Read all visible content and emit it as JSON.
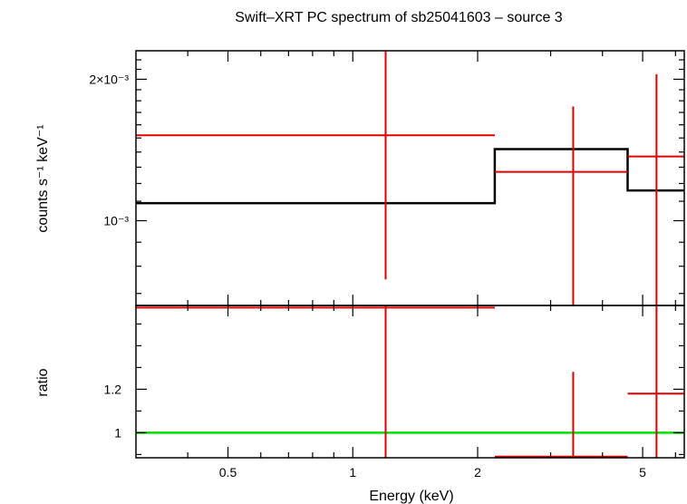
{
  "chart_data": [
    {
      "type": "line",
      "panel": "spectrum",
      "title": "Swift–XRT PC spectrum of sb25041603 – source 3",
      "ylabel": "counts s⁻¹ keV⁻¹",
      "xscale": "log",
      "yscale": "log",
      "xlim": [
        0.3,
        6.3
      ],
      "ylim": [
        0.00066,
        0.0023
      ],
      "yticks_labeled": [
        {
          "value": 0.001,
          "label": "10⁻³"
        },
        {
          "value": 0.002,
          "label": "2×10⁻³"
        }
      ],
      "yticks_minor": [
        0.0007,
        0.0008,
        0.0009,
        0.0011,
        0.0012,
        0.0013,
        0.0014,
        0.0015,
        0.0016,
        0.0017,
        0.0018,
        0.0019,
        0.0021,
        0.0022
      ],
      "data": [
        {
          "x_lo": 0.3,
          "x_hi": 2.2,
          "x": 1.2,
          "y": 0.00152,
          "y_lo": 0.00075,
          "y_hi": 0.0023
        },
        {
          "x_lo": 2.2,
          "x_hi": 4.6,
          "x": 3.4,
          "y": 0.00127,
          "y_lo": 0.00066,
          "y_hi": 0.00175
        },
        {
          "x_lo": 4.6,
          "x_hi": 6.3,
          "x": 5.4,
          "y": 0.00137,
          "y_lo": 0.00066,
          "y_hi": 0.00205
        }
      ],
      "model_steps": [
        {
          "x_lo": 0.3,
          "x_hi": 2.2,
          "y": 0.00109
        },
        {
          "x_lo": 2.2,
          "x_hi": 4.6,
          "y": 0.00142
        },
        {
          "x_lo": 4.6,
          "x_hi": 6.3,
          "y": 0.00116
        }
      ],
      "colors": {
        "data": "#e00000",
        "model": "#000000"
      }
    },
    {
      "type": "line",
      "panel": "ratio",
      "ylabel": "ratio",
      "xlabel": "Energy (keV)",
      "xscale": "log",
      "xlim": [
        0.3,
        6.3
      ],
      "ylim": [
        0.885,
        1.585
      ],
      "yticks_labeled": [
        {
          "value": 1,
          "label": "1"
        },
        {
          "value": 1.2,
          "label": "1.2"
        }
      ],
      "yticks_minor": [
        0.9,
        1.1,
        1.3,
        1.4,
        1.5
      ],
      "xticks_labeled": [
        {
          "value": 0.5,
          "label": "0.5"
        },
        {
          "value": 1,
          "label": "1"
        },
        {
          "value": 2,
          "label": "2"
        },
        {
          "value": 5,
          "label": "5"
        }
      ],
      "xticks_minor": [
        0.4,
        0.6,
        0.7,
        0.8,
        0.9,
        3,
        4,
        6
      ],
      "data": [
        {
          "x_lo": 0.3,
          "x_hi": 2.2,
          "x": 1.2,
          "y": 1.575,
          "y_lo": 0.885,
          "y_hi": 1.585
        },
        {
          "x_lo": 2.2,
          "x_hi": 4.6,
          "x": 3.4,
          "y": 0.89,
          "y_lo": 0.885,
          "y_hi": 1.28
        },
        {
          "x_lo": 4.6,
          "x_hi": 6.3,
          "x": 5.4,
          "y": 1.18,
          "y_lo": 0.885,
          "y_hi": 1.585
        }
      ],
      "reference_line": 1,
      "colors": {
        "data": "#e00000",
        "reference": "#00e000"
      }
    }
  ]
}
